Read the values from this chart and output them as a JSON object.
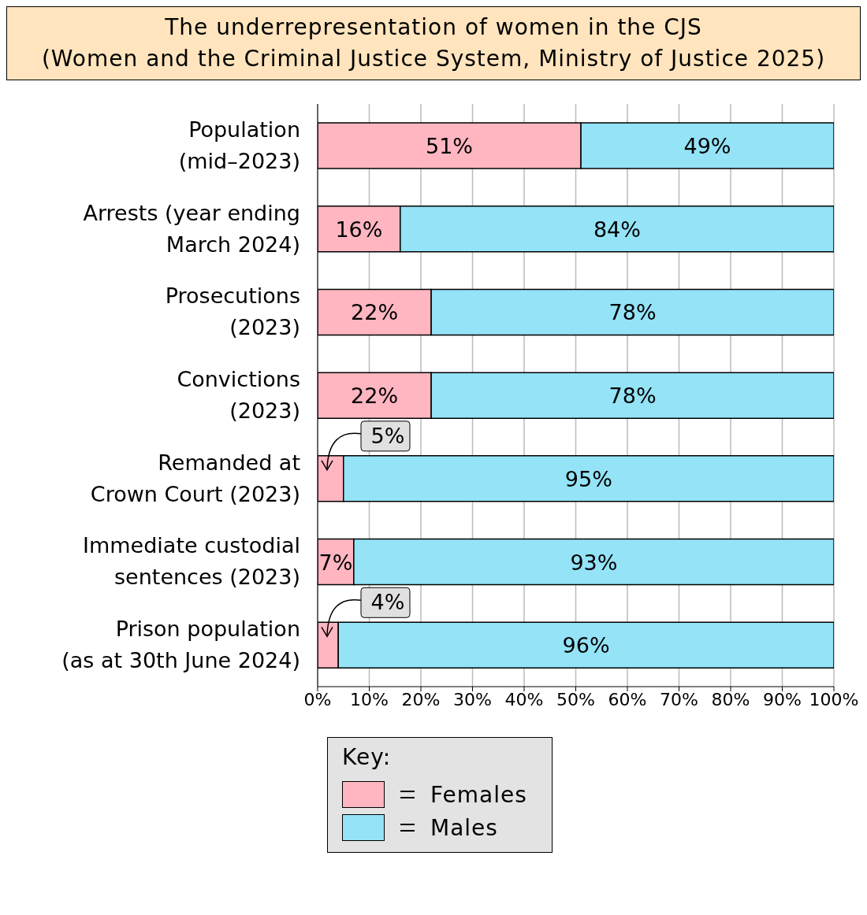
{
  "chart_data": {
    "type": "bar",
    "orientation": "horizontal",
    "stacked": true,
    "title": "The underrepresentation of women in the CJS",
    "subtitle": "(Women and the Criminal Justice System, Ministry of Justice 2025)",
    "categories": [
      "Population\n(mid–2023)",
      "Arrests (year ending\nMarch 2024)",
      "Prosecutions\n(2023)",
      "Convictions\n(2023)",
      "Remanded at\nCrown Court (2023)",
      "Immediate custodial\nsentences (2023)",
      "Prison population\n(as at 30th June 2024)"
    ],
    "series": [
      {
        "name": "Females",
        "color": "#ffb6c1",
        "values": [
          51,
          16,
          22,
          22,
          5,
          7,
          4
        ],
        "value_labels": [
          "51%",
          "16%",
          "22%",
          "22%",
          "5%",
          "7%",
          "4%"
        ]
      },
      {
        "name": "Males",
        "color": "#94e3f7",
        "values": [
          49,
          84,
          78,
          78,
          95,
          93,
          96
        ],
        "value_labels": [
          "49%",
          "84%",
          "78%",
          "78%",
          "95%",
          "93%",
          "96%"
        ]
      }
    ],
    "xlim": [
      0,
      100
    ],
    "xticks": [
      {
        "value": 0,
        "label": "0%"
      },
      {
        "value": 10,
        "label": "10%"
      },
      {
        "value": 20,
        "label": "20%"
      },
      {
        "value": 30,
        "label": "30%"
      },
      {
        "value": 40,
        "label": "40%"
      },
      {
        "value": 50,
        "label": "50%"
      },
      {
        "value": 60,
        "label": "60%"
      },
      {
        "value": 70,
        "label": "70%"
      },
      {
        "value": 80,
        "label": "80%"
      },
      {
        "value": 90,
        "label": "90%"
      },
      {
        "value": 100,
        "label": "100%"
      }
    ],
    "grid": "x",
    "legend": "bottom",
    "legend_title": "Key:"
  }
}
